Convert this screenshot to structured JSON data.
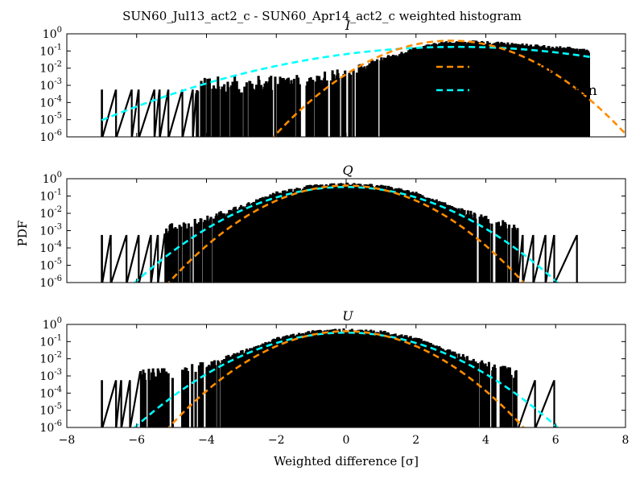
{
  "figure": {
    "suptitle": "SUN60_Jul13_act2_c - SUN60_Apr14_act2_c weighted histogram",
    "xlabel": "Weighted difference [σ]",
    "ylabel": "PDF"
  },
  "legend": {
    "placement": "right, top panel",
    "entries": [
      {
        "label": "White noise",
        "style": "dashed",
        "color": "#ff8c00"
      },
      {
        "label": "Fitted Gaussian",
        "style": "dashed",
        "color": "#00ffff"
      },
      {
        "label": "Data",
        "style": "box",
        "color": "#000000"
      }
    ]
  },
  "chart_data": [
    {
      "type": "line",
      "panel_title": "I",
      "xlim": [
        -8,
        8
      ],
      "ylim_log10": [
        -6,
        0
      ],
      "yscale": "log",
      "xticks": [
        "−8",
        "−6",
        "−4",
        "−2",
        "0",
        "2",
        "4",
        "6",
        "8"
      ],
      "yticks": [
        {
          "base": "10",
          "exp": "0"
        },
        {
          "base": "10",
          "exp": "-1"
        },
        {
          "base": "10",
          "exp": "-2"
        },
        {
          "base": "10",
          "exp": "-3"
        },
        {
          "base": "10",
          "exp": "-4"
        },
        {
          "base": "10",
          "exp": "-5"
        },
        {
          "base": "10",
          "exp": "-6"
        }
      ],
      "white_noise": {
        "name": "White noise",
        "mu": 3.0,
        "sigma": 1.0,
        "color": "#ff8c00"
      },
      "fitted_gaussian": {
        "name": "Fitted Gaussian",
        "mu": 3.2,
        "sigma": 2.3,
        "color": "#00ffff"
      },
      "data_envelope": {
        "name": "Data",
        "x": [
          -6.9,
          -6.3,
          -5.0,
          -4.0,
          -3.0,
          -2.0,
          -1.0,
          0.0,
          1.0,
          2.0,
          2.8,
          3.5,
          4.5,
          5.5,
          6.5,
          6.95
        ],
        "log10_pdf": [
          -3.3,
          -3.3,
          -3.3,
          -3.1,
          -3.0,
          -2.9,
          -2.7,
          -2.3,
          -1.6,
          -0.9,
          -0.6,
          -0.55,
          -0.65,
          -0.8,
          -0.95,
          -1.05
        ]
      },
      "data_spikes_x": [
        -7.0,
        -6.6,
        -6.15,
        -5.95,
        -5.5,
        -5.35,
        -5.1,
        -4.7,
        -4.4
      ],
      "dense_start_x": -4.3
    },
    {
      "type": "line",
      "panel_title": "Q",
      "xlim": [
        -8,
        8
      ],
      "ylim_log10": [
        -6,
        0
      ],
      "yscale": "log",
      "xticks": [
        "−8",
        "−6",
        "−4",
        "−2",
        "0",
        "2",
        "4",
        "6",
        "8"
      ],
      "yticks": [
        {
          "base": "10",
          "exp": "0"
        },
        {
          "base": "10",
          "exp": "-1"
        },
        {
          "base": "10",
          "exp": "-2"
        },
        {
          "base": "10",
          "exp": "-3"
        },
        {
          "base": "10",
          "exp": "-4"
        },
        {
          "base": "10",
          "exp": "-5"
        },
        {
          "base": "10",
          "exp": "-6"
        }
      ],
      "white_noise": {
        "name": "White noise",
        "mu": 0.0,
        "sigma": 1.0,
        "color": "#ff8c00"
      },
      "fitted_gaussian": {
        "name": "Fitted Gaussian",
        "mu": 0.0,
        "sigma": 1.2,
        "color": "#00ffff"
      },
      "data_envelope": {
        "name": "Data",
        "x": [
          -4.8,
          -4.0,
          -3.0,
          -2.0,
          -1.0,
          0.0,
          1.0,
          2.0,
          3.0,
          4.0,
          4.8
        ],
        "log10_pdf": [
          -2.9,
          -2.4,
          -1.7,
          -0.9,
          -0.5,
          -0.4,
          -0.5,
          -0.9,
          -1.7,
          -2.4,
          -2.9
        ]
      },
      "data_spikes_x": [
        -7.0,
        -6.75,
        -6.3,
        -5.95,
        -5.6,
        -5.4,
        5.05,
        5.35,
        5.7,
        5.95,
        6.6
      ],
      "dense_range": [
        -5.2,
        4.9
      ]
    },
    {
      "type": "line",
      "panel_title": "U",
      "xlim": [
        -8,
        8
      ],
      "ylim_log10": [
        -6,
        0
      ],
      "yscale": "log",
      "xticks": [
        "−8",
        "−6",
        "−4",
        "−2",
        "0",
        "2",
        "4",
        "6",
        "8"
      ],
      "yticks": [
        {
          "base": "10",
          "exp": "0"
        },
        {
          "base": "10",
          "exp": "-1"
        },
        {
          "base": "10",
          "exp": "-2"
        },
        {
          "base": "10",
          "exp": "-3"
        },
        {
          "base": "10",
          "exp": "-4"
        },
        {
          "base": "10",
          "exp": "-5"
        },
        {
          "base": "10",
          "exp": "-6"
        }
      ],
      "white_noise": {
        "name": "White noise",
        "mu": 0.0,
        "sigma": 1.0,
        "color": "#ff8c00"
      },
      "fitted_gaussian": {
        "name": "Fitted Gaussian",
        "mu": 0.0,
        "sigma": 1.2,
        "color": "#00ffff"
      },
      "data_envelope": {
        "name": "Data",
        "x": [
          -6.0,
          -5.0,
          -4.0,
          -3.0,
          -2.0,
          -1.0,
          0.0,
          1.0,
          2.0,
          3.0,
          4.0,
          4.8
        ],
        "log10_pdf": [
          -3.0,
          -2.9,
          -2.4,
          -1.7,
          -0.9,
          -0.5,
          -0.4,
          -0.5,
          -0.9,
          -1.7,
          -2.4,
          -2.9
        ]
      },
      "data_spikes_x": [
        -7.0,
        -6.6,
        -6.45,
        -6.2,
        -5.8,
        -5.6,
        5.95,
        5.4
      ],
      "dense_range": [
        -5.9,
        4.9
      ]
    }
  ]
}
